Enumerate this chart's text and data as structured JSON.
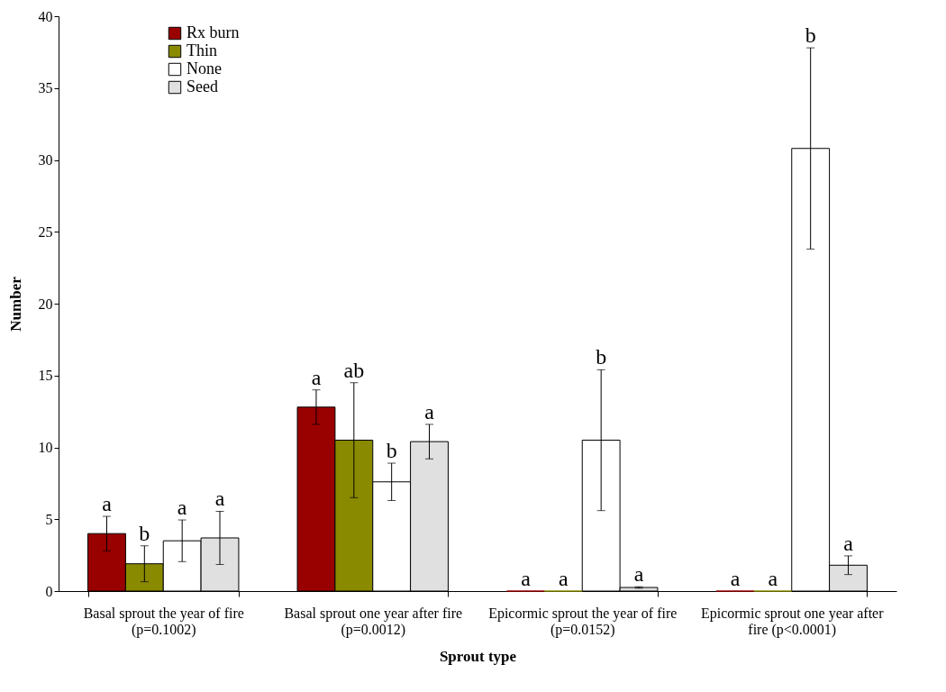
{
  "chart_data": {
    "type": "bar",
    "xlabel": "Sprout type",
    "ylabel": "Number",
    "categories": [
      "Basal sprout the year of fire (p=0.1002)",
      "Basal sprout one year after fire (p=0.0012)",
      "Epicormic sprout the year of fire (p=0.0152)",
      "Epicormic sprout one year after fire (p<0.0001)"
    ],
    "series": [
      {
        "name": "Rx burn",
        "color": "#990000",
        "values": [
          4.0,
          12.8,
          0,
          0
        ],
        "errors": [
          1.2,
          1.2,
          null,
          null
        ]
      },
      {
        "name": "Thin",
        "color": "#8a8a00",
        "values": [
          1.9,
          10.5,
          0,
          0
        ],
        "errors": [
          1.25,
          4.0,
          null,
          null
        ]
      },
      {
        "name": "None",
        "color": "#ffffff",
        "values": [
          3.5,
          7.6,
          10.5,
          30.8
        ],
        "errors": [
          1.45,
          1.3,
          4.9,
          7.0
        ]
      },
      {
        "name": "Seed",
        "color": "#e0e0e0",
        "values": [
          3.7,
          10.4,
          0.25,
          1.8
        ],
        "errors": [
          1.85,
          1.2,
          0.05,
          0.65
        ]
      }
    ],
    "ylim": [
      0,
      40
    ],
    "yticks": [
      0,
      5,
      10,
      15,
      20,
      25,
      30,
      35,
      40
    ],
    "grid": false,
    "legend": "top left",
    "annotations": [
      "a",
      "b",
      "a",
      "a",
      "a",
      "ab",
      "b",
      "a",
      "a",
      "a",
      "b",
      "a",
      "a",
      "a",
      "b",
      "a"
    ]
  }
}
